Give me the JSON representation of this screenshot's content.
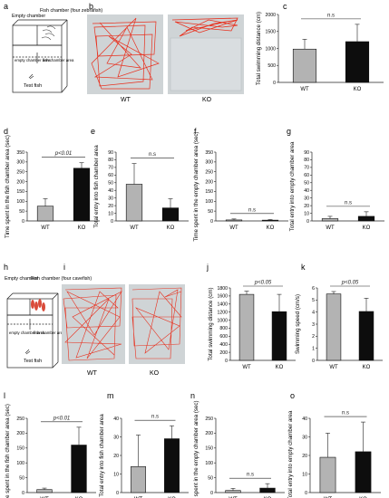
{
  "panels": {
    "a": {
      "letter": "a",
      "label_empty_chamber": "Empty chamber",
      "label_fish_chamber": "Fish chamber (four zebrafish)",
      "label_empty_area": "empty chamber area",
      "label_fish_area": "fish chamber area",
      "label_test_fish": "Test fish"
    },
    "b": {
      "letter": "b",
      "wt_label": "WT",
      "ko_label": "KO"
    },
    "h": {
      "letter": "h",
      "label_empty_chamber": "Empty chamber",
      "label_fish_chamber": "Fish chamber (four cavefish)",
      "label_empty_area": "empty chamber area",
      "label_fish_area": "fish chamber area",
      "label_test_fish": "Test fish"
    },
    "i": {
      "letter": "i",
      "wt_label": "WT",
      "ko_label": "KO"
    }
  },
  "colors": {
    "wt_bar": "#b3b3b3",
    "ko_bar": "#0d0d0d",
    "trace": "#e8301e",
    "tank_bg": "#cfd4d6",
    "p_text": "#222222"
  },
  "chart_data": [
    {
      "id": "c",
      "letter": "c",
      "type": "bar",
      "categories": [
        "WT",
        "KO"
      ],
      "values": [
        980,
        1200
      ],
      "errors": [
        290,
        510
      ],
      "ylabel": "Total swimming distance (cm)",
      "ylim": [
        0,
        2000
      ],
      "yticks": [
        "0",
        "500",
        "1000",
        "1500",
        "2000"
      ],
      "significance": "n.s"
    },
    {
      "id": "d",
      "letter": "d",
      "type": "bar",
      "categories": [
        "WT",
        "KO"
      ],
      "values": [
        75,
        268
      ],
      "errors": [
        38,
        28
      ],
      "ylabel": "Time spent in the fish chamber area (sec)",
      "ylim": [
        0,
        350
      ],
      "yticks": [
        "0",
        "50",
        "100",
        "150",
        "200",
        "250",
        "300",
        "350"
      ],
      "significance": "p<0.01"
    },
    {
      "id": "e",
      "letter": "e",
      "type": "bar",
      "categories": [
        "WT",
        "KO"
      ],
      "values": [
        48,
        17
      ],
      "errors": [
        27,
        12
      ],
      "ylabel": "Total entry into fish chamber area",
      "ylim": [
        0,
        90
      ],
      "yticks": [
        "0",
        "10",
        "20",
        "30",
        "40",
        "50",
        "60",
        "70",
        "80",
        "90"
      ],
      "significance": "n.s"
    },
    {
      "id": "f",
      "letter": "f",
      "type": "bar",
      "categories": [
        "WT",
        "KO"
      ],
      "values": [
        5,
        4
      ],
      "errors": [
        5,
        3
      ],
      "ylabel": "Time spent in the empty chamber area (sec)",
      "ylim": [
        0,
        350
      ],
      "yticks": [
        "0",
        "50",
        "100",
        "150",
        "200",
        "250",
        "300",
        "350"
      ],
      "significance": "n.s"
    },
    {
      "id": "g",
      "letter": "g",
      "type": "bar",
      "categories": [
        "WT",
        "KO"
      ],
      "values": [
        3,
        6
      ],
      "errors": [
        3,
        6
      ],
      "ylabel": "Total entry into empty chamber area",
      "ylim": [
        0,
        90
      ],
      "yticks": [
        "0",
        "10",
        "20",
        "30",
        "40",
        "50",
        "60",
        "70",
        "80",
        "90"
      ],
      "significance": "n.s"
    },
    {
      "id": "j",
      "letter": "j",
      "type": "bar",
      "categories": [
        "WT",
        "KO"
      ],
      "values": [
        1640,
        1210
      ],
      "errors": [
        80,
        430
      ],
      "ylabel": "Total swimming distance (cm)",
      "ylim": [
        0,
        1800
      ],
      "yticks": [
        "0",
        "200",
        "400",
        "600",
        "800",
        "1000",
        "1200",
        "1400",
        "1600",
        "1800"
      ],
      "significance": "p<0.05"
    },
    {
      "id": "k",
      "letter": "k",
      "type": "bar",
      "categories": [
        "WT",
        "KO"
      ],
      "values": [
        5.5,
        4.05
      ],
      "errors": [
        0.2,
        1.1
      ],
      "ylabel": "Swimming speed (cm/s)",
      "ylim": [
        0,
        6
      ],
      "yticks": [
        "0",
        "1",
        "2",
        "3",
        "4",
        "5",
        "6"
      ],
      "significance": "p<0.05"
    },
    {
      "id": "l",
      "letter": "l",
      "type": "bar",
      "categories": [
        "WT",
        "KO"
      ],
      "values": [
        10,
        160
      ],
      "errors": [
        5,
        60
      ],
      "ylabel": "Time spent in the fish chamber area (sec)",
      "ylim": [
        0,
        250
      ],
      "yticks": [
        "0",
        "50",
        "100",
        "150",
        "200",
        "250"
      ],
      "significance": "p<0.01"
    },
    {
      "id": "m",
      "letter": "m",
      "type": "bar",
      "categories": [
        "WT",
        "KO"
      ],
      "values": [
        14,
        29
      ],
      "errors": [
        17,
        7
      ],
      "ylabel": "Total entry into fish chamber area",
      "ylim": [
        0,
        40
      ],
      "yticks": [
        "0",
        "10",
        "20",
        "30",
        "40"
      ],
      "significance": "n.s"
    },
    {
      "id": "n",
      "letter": "n",
      "type": "bar",
      "categories": [
        "WT",
        "KO"
      ],
      "values": [
        7,
        15
      ],
      "errors": [
        7,
        15
      ],
      "ylabel": "Time spent in the empty chamber area (sec)",
      "ylim": [
        0,
        250
      ],
      "yticks": [
        "0",
        "50",
        "100",
        "150",
        "200",
        "250"
      ],
      "significance": "n.s"
    },
    {
      "id": "o",
      "letter": "o",
      "type": "bar",
      "categories": [
        "WT",
        "KO"
      ],
      "values": [
        19,
        22
      ],
      "errors": [
        13,
        16
      ],
      "ylabel": "Total entry into empty chamber area",
      "ylim": [
        0,
        40
      ],
      "yticks": [
        "0",
        "10",
        "20",
        "30",
        "40"
      ],
      "significance": "n.s"
    }
  ]
}
